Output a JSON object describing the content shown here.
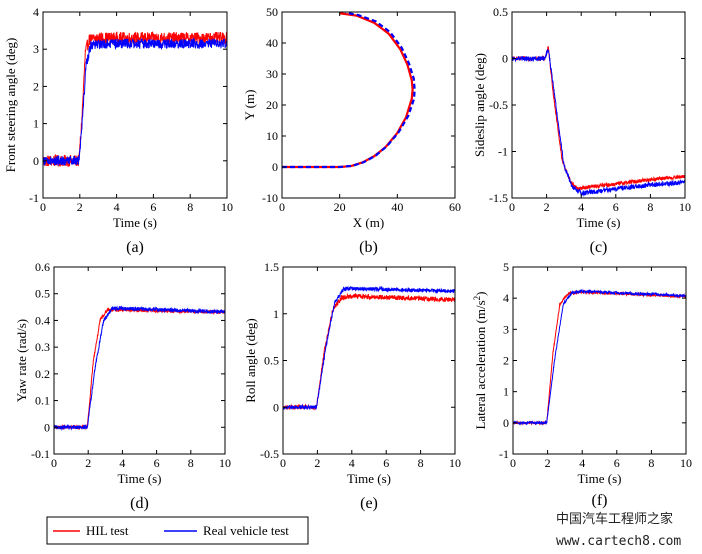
{
  "chart_data": [
    {
      "type": "line",
      "id": "a",
      "caption": "(a)",
      "xlabel": "Time (s)",
      "ylabel": "Front steering angle (deg)",
      "xlim": [
        0,
        10
      ],
      "ylim": [
        -1,
        4
      ],
      "xticks": [
        0,
        2,
        4,
        6,
        8,
        10
      ],
      "xtick_labels": [
        "0",
        "2",
        "4",
        "6",
        "8",
        "10"
      ],
      "yticks": [
        -1,
        0,
        1,
        2,
        3,
        4
      ],
      "ytick_labels": [
        "-1",
        "0",
        "1",
        "2",
        "3",
        "4"
      ],
      "series": [
        {
          "name": "HIL test",
          "color": "#ff0000",
          "noise": 0.16,
          "points": [
            [
              0,
              0.0
            ],
            [
              1.95,
              0.0
            ],
            [
              2.1,
              1.0
            ],
            [
              2.3,
              2.9
            ],
            [
              2.5,
              3.25
            ],
            [
              3,
              3.3
            ],
            [
              10,
              3.3
            ]
          ]
        },
        {
          "name": "Real vehicle test",
          "color": "#0000ff",
          "noise": 0.13,
          "points": [
            [
              0,
              0.0
            ],
            [
              1.95,
              0.0
            ],
            [
              2.1,
              0.8
            ],
            [
              2.35,
              2.6
            ],
            [
              2.6,
              3.1
            ],
            [
              3.2,
              3.15
            ],
            [
              10,
              3.15
            ]
          ]
        }
      ]
    },
    {
      "type": "line",
      "id": "b",
      "caption": "(b)",
      "xlabel": "X (m)",
      "ylabel": "Y (m)",
      "xlim": [
        0,
        60
      ],
      "ylim": [
        -10,
        50
      ],
      "xticks": [
        0,
        20,
        40,
        60
      ],
      "xtick_labels": [
        "0",
        "20",
        "40",
        "60"
      ],
      "yticks": [
        -10,
        0,
        10,
        20,
        30,
        40,
        50
      ],
      "ytick_labels": [
        "-10",
        "0",
        "10",
        "20",
        "30",
        "40",
        "50"
      ],
      "series": [
        {
          "name": "HIL test",
          "color": "#ff0000",
          "noise": 0,
          "points": [
            [
              0,
              0
            ],
            [
              20,
              0
            ],
            [
              24,
              0.3
            ],
            [
              28,
              1.5
            ],
            [
              32,
              3.5
            ],
            [
              36,
              6.5
            ],
            [
              40,
              11
            ],
            [
              43,
              16
            ],
            [
              45,
              22
            ],
            [
              45.3,
              25
            ],
            [
              45,
              28
            ],
            [
              43.5,
              33
            ],
            [
              41,
              38
            ],
            [
              37,
              43
            ],
            [
              32,
              46.5
            ],
            [
              26,
              48.8
            ],
            [
              20,
              49.6
            ]
          ]
        },
        {
          "name": "Real vehicle test",
          "color": "#0000ff",
          "noise": 0,
          "points": [
            [
              0,
              0
            ],
            [
              20,
              0
            ],
            [
              24.5,
              0.4
            ],
            [
              28.5,
              1.6
            ],
            [
              32.5,
              3.7
            ],
            [
              36.5,
              6.8
            ],
            [
              40.5,
              11.3
            ],
            [
              43.8,
              16.5
            ],
            [
              45.8,
              22
            ],
            [
              46,
              25
            ],
            [
              45.7,
              28.5
            ],
            [
              44,
              33.5
            ],
            [
              41.5,
              38.5
            ],
            [
              37.5,
              43.5
            ],
            [
              32.5,
              47
            ],
            [
              26.5,
              49
            ],
            [
              22,
              49.8
            ]
          ]
        }
      ]
    },
    {
      "type": "line",
      "id": "c",
      "caption": "(c)",
      "xlabel": "Time (s)",
      "ylabel": "Sideslip angle (deg)",
      "xlim": [
        0,
        10
      ],
      "ylim": [
        -1.5,
        0.5
      ],
      "xticks": [
        0,
        2,
        4,
        6,
        8,
        10
      ],
      "xtick_labels": [
        "0",
        "2",
        "4",
        "6",
        "8",
        "10"
      ],
      "yticks": [
        -1.5,
        -1,
        -0.5,
        0,
        0.5
      ],
      "ytick_labels": [
        "-1.5",
        "-1",
        "-0.5",
        "0",
        "0.5"
      ],
      "series": [
        {
          "name": "HIL test",
          "color": "#ff0000",
          "noise": 0.02,
          "points": [
            [
              0,
              0.0
            ],
            [
              1.9,
              0.0
            ],
            [
              2.1,
              0.12
            ],
            [
              2.4,
              -0.4
            ],
            [
              2.9,
              -1.1
            ],
            [
              3.4,
              -1.33
            ],
            [
              3.8,
              -1.4
            ],
            [
              4.5,
              -1.38
            ],
            [
              6,
              -1.35
            ],
            [
              8,
              -1.3
            ],
            [
              10,
              -1.27
            ]
          ]
        },
        {
          "name": "Real vehicle test",
          "color": "#0000ff",
          "noise": 0.025,
          "points": [
            [
              0,
              0.0
            ],
            [
              1.9,
              0.0
            ],
            [
              2.1,
              0.1
            ],
            [
              2.5,
              -0.45
            ],
            [
              3,
              -1.15
            ],
            [
              3.5,
              -1.38
            ],
            [
              4,
              -1.45
            ],
            [
              4.5,
              -1.44
            ],
            [
              6,
              -1.4
            ],
            [
              8,
              -1.36
            ],
            [
              10,
              -1.33
            ]
          ]
        }
      ]
    },
    {
      "type": "line",
      "id": "d",
      "caption": "(d)",
      "xlabel": "Time (s)",
      "ylabel": "Yaw rate (rad/s)",
      "xlim": [
        0,
        10
      ],
      "ylim": [
        -0.1,
        0.6
      ],
      "xticks": [
        0,
        2,
        4,
        6,
        8,
        10
      ],
      "xtick_labels": [
        "0",
        "2",
        "4",
        "6",
        "8",
        "10"
      ],
      "yticks": [
        -0.1,
        0,
        0.1,
        0.2,
        0.3,
        0.4,
        0.5,
        0.6
      ],
      "ytick_labels": [
        "-0.1",
        "0",
        "0.1",
        "0.2",
        "0.3",
        "0.4",
        "0.5",
        "0.6"
      ],
      "series": [
        {
          "name": "HIL test",
          "color": "#ff0000",
          "noise": 0.006,
          "points": [
            [
              0,
              0.0
            ],
            [
              1.95,
              0.0
            ],
            [
              2.3,
              0.25
            ],
            [
              2.7,
              0.4
            ],
            [
              3.1,
              0.44
            ],
            [
              4,
              0.44
            ],
            [
              10,
              0.43
            ]
          ]
        },
        {
          "name": "Real vehicle test",
          "color": "#0000ff",
          "noise": 0.007,
          "points": [
            [
              0,
              0.0
            ],
            [
              1.95,
              0.0
            ],
            [
              2.4,
              0.22
            ],
            [
              2.9,
              0.4
            ],
            [
              3.4,
              0.445
            ],
            [
              4,
              0.445
            ],
            [
              10,
              0.432
            ]
          ]
        }
      ]
    },
    {
      "type": "line",
      "id": "e",
      "caption": "(e)",
      "xlabel": "Time (s)",
      "ylabel": "Roll angle (deg)",
      "xlim": [
        0,
        10
      ],
      "ylim": [
        -0.5,
        1.5
      ],
      "xticks": [
        0,
        2,
        4,
        6,
        8,
        10
      ],
      "xtick_labels": [
        "0",
        "2",
        "4",
        "6",
        "8",
        "10"
      ],
      "yticks": [
        -0.5,
        0,
        0.5,
        1,
        1.5
      ],
      "ytick_labels": [
        "-0.5",
        "0",
        "0.5",
        "1",
        "1.5"
      ],
      "series": [
        {
          "name": "HIL test",
          "color": "#ff0000",
          "noise": 0.025,
          "points": [
            [
              0,
              0.0
            ],
            [
              1.95,
              0.0
            ],
            [
              2.4,
              0.6
            ],
            [
              2.9,
              1.05
            ],
            [
              3.4,
              1.17
            ],
            [
              4,
              1.19
            ],
            [
              10,
              1.15
            ]
          ]
        },
        {
          "name": "Real vehicle test",
          "color": "#0000ff",
          "noise": 0.02,
          "points": [
            [
              0,
              0.0
            ],
            [
              1.95,
              0.0
            ],
            [
              2.5,
              0.65
            ],
            [
              3.0,
              1.12
            ],
            [
              3.5,
              1.26
            ],
            [
              4,
              1.27
            ],
            [
              10,
              1.24
            ]
          ]
        }
      ]
    },
    {
      "type": "line",
      "id": "f",
      "caption": "(f)",
      "xlabel": "Time (s)",
      "ylabel": "Lateral acceleration (m/s",
      "ylabel_sup": "2",
      "ylabel_end": ")",
      "xlim": [
        0,
        10
      ],
      "ylim": [
        -1,
        5
      ],
      "xticks": [
        0,
        2,
        4,
        6,
        8,
        10
      ],
      "xtick_labels": [
        "0",
        "2",
        "4",
        "6",
        "8",
        "10"
      ],
      "yticks": [
        -1,
        0,
        1,
        2,
        3,
        4,
        5
      ],
      "ytick_labels": [
        "-1",
        "0",
        "1",
        "2",
        "3",
        "4",
        "5"
      ],
      "series": [
        {
          "name": "HIL test",
          "color": "#ff0000",
          "noise": 0.04,
          "points": [
            [
              0,
              0.0
            ],
            [
              1.95,
              0.0
            ],
            [
              2.3,
              2.2
            ],
            [
              2.7,
              3.8
            ],
            [
              3.2,
              4.15
            ],
            [
              4,
              4.2
            ],
            [
              10,
              4.05
            ]
          ]
        },
        {
          "name": "Real vehicle test",
          "color": "#0000ff",
          "noise": 0.04,
          "points": [
            [
              0,
              0.0
            ],
            [
              1.95,
              0.0
            ],
            [
              2.4,
              2.0
            ],
            [
              2.9,
              3.8
            ],
            [
              3.4,
              4.18
            ],
            [
              4,
              4.22
            ],
            [
              10,
              4.08
            ]
          ]
        }
      ]
    }
  ],
  "legend": {
    "placement": "bottom-left",
    "entries": [
      {
        "label": "HIL test",
        "color": "#ff0000"
      },
      {
        "label": "Real vehicle test",
        "color": "#0000ff"
      }
    ]
  },
  "watermark": {
    "line1": "中国汽车工程师之家",
    "line2": "www.cartech8.com"
  }
}
